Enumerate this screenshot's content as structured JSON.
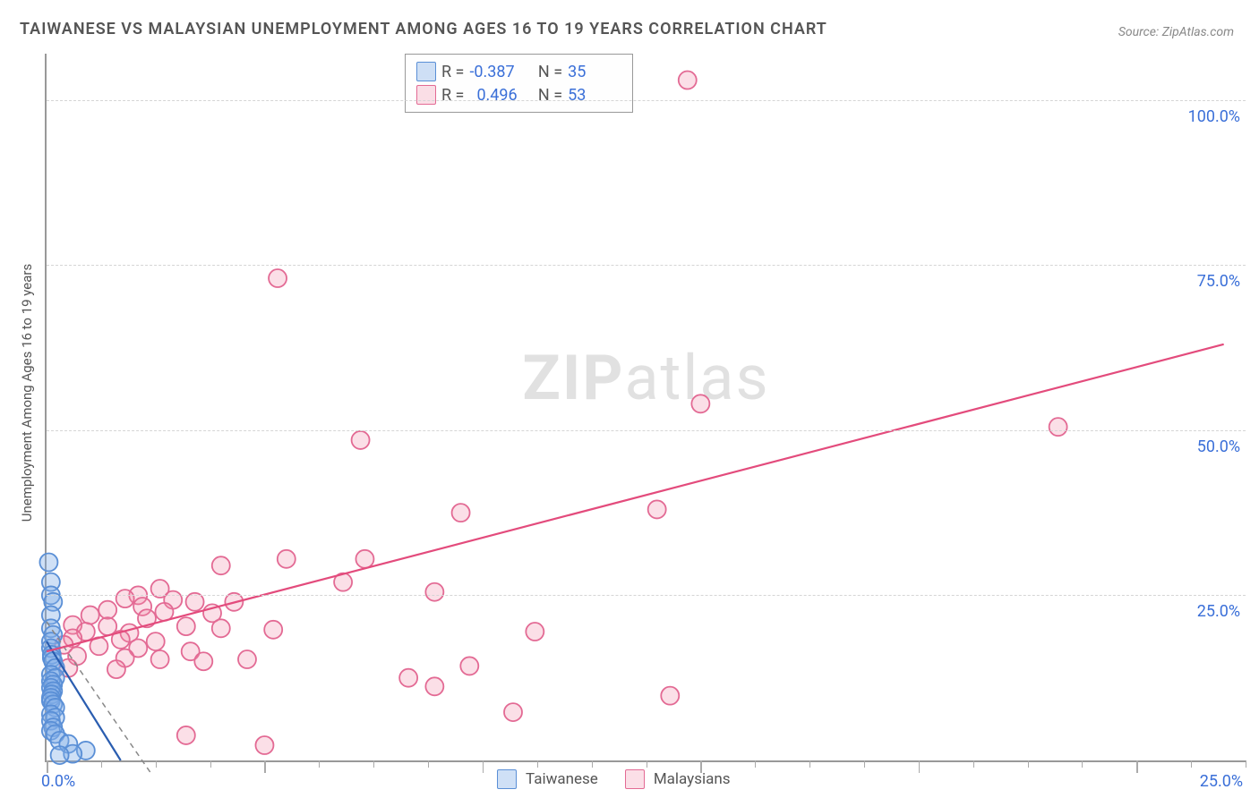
{
  "title": "TAIWANESE VS MALAYSIAN UNEMPLOYMENT AMONG AGES 16 TO 19 YEARS CORRELATION CHART",
  "source_label": "Source:",
  "source_name": "ZipAtlas.com",
  "ylabel": "Unemployment Among Ages 16 to 19 years",
  "watermark_bold": "ZIP",
  "watermark_light": "atlas",
  "chart": {
    "type": "scatter",
    "xlim": [
      0,
      27.5
    ],
    "ylim": [
      0,
      107
    ],
    "x_tick_step_minor": 1.25,
    "x_tick_major_every": 4,
    "y_gridlines": [
      25,
      50,
      75,
      100
    ],
    "y_labels": [
      {
        "v": 25,
        "t": "25.0%"
      },
      {
        "v": 50,
        "t": "50.0%"
      },
      {
        "v": 75,
        "t": "75.0%"
      },
      {
        "v": 100,
        "t": "100.0%"
      }
    ],
    "x_origin_label": "0.0%",
    "x_max_label": "25.0%",
    "background": "#ffffff",
    "grid_color": "#d5d5d5",
    "axis_color": "#999999",
    "point_radius": 10,
    "point_stroke_width": 1.8,
    "line_width": 2.2
  },
  "series": {
    "taiwanese": {
      "label": "Taiwanese",
      "R": "-0.387",
      "N": "35",
      "fill": "rgba(129,174,231,0.38)",
      "stroke": "#5a8fd6",
      "line_color": "#2a5db0",
      "trend": {
        "x1": 0,
        "y1": 18,
        "x2": 1.7,
        "y2": 0
      },
      "guide": {
        "x1": 0,
        "y1": 21,
        "x2": 2.4,
        "y2": -2,
        "dash": "6,5",
        "color": "#888"
      },
      "points": [
        {
          "x": 0.05,
          "y": 30
        },
        {
          "x": 0.1,
          "y": 27
        },
        {
          "x": 0.1,
          "y": 25
        },
        {
          "x": 0.15,
          "y": 24
        },
        {
          "x": 0.1,
          "y": 22
        },
        {
          "x": 0.1,
          "y": 20
        },
        {
          "x": 0.15,
          "y": 19
        },
        {
          "x": 0.1,
          "y": 18
        },
        {
          "x": 0.1,
          "y": 17
        },
        {
          "x": 0.12,
          "y": 16
        },
        {
          "x": 0.12,
          "y": 15.5
        },
        {
          "x": 0.15,
          "y": 15
        },
        {
          "x": 0.2,
          "y": 14
        },
        {
          "x": 0.1,
          "y": 13
        },
        {
          "x": 0.2,
          "y": 12.5
        },
        {
          "x": 0.1,
          "y": 12
        },
        {
          "x": 0.15,
          "y": 11.5
        },
        {
          "x": 0.1,
          "y": 11
        },
        {
          "x": 0.15,
          "y": 10.5
        },
        {
          "x": 0.12,
          "y": 10
        },
        {
          "x": 0.1,
          "y": 9.5
        },
        {
          "x": 0.1,
          "y": 9
        },
        {
          "x": 0.15,
          "y": 8.5
        },
        {
          "x": 0.2,
          "y": 8
        },
        {
          "x": 0.1,
          "y": 7
        },
        {
          "x": 0.2,
          "y": 6.5
        },
        {
          "x": 0.1,
          "y": 6
        },
        {
          "x": 0.15,
          "y": 5
        },
        {
          "x": 0.1,
          "y": 4.5
        },
        {
          "x": 0.2,
          "y": 4
        },
        {
          "x": 0.3,
          "y": 3
        },
        {
          "x": 0.5,
          "y": 2.5
        },
        {
          "x": 0.9,
          "y": 1.5
        },
        {
          "x": 0.6,
          "y": 1
        },
        {
          "x": 0.3,
          "y": 0.8
        }
      ]
    },
    "malaysians": {
      "label": "Malaysians",
      "R": "0.496",
      "N": "53",
      "fill": "rgba(240,140,170,0.28)",
      "stroke": "#e36a94",
      "line_color": "#e34b7c",
      "trend": {
        "x1": 0,
        "y1": 16.5,
        "x2": 27,
        "y2": 63
      },
      "points": [
        {
          "x": 14.7,
          "y": 103
        },
        {
          "x": 5.3,
          "y": 73
        },
        {
          "x": 15,
          "y": 54
        },
        {
          "x": 23.2,
          "y": 50.5
        },
        {
          "x": 7.2,
          "y": 48.5
        },
        {
          "x": 14,
          "y": 38
        },
        {
          "x": 9.5,
          "y": 37.5
        },
        {
          "x": 5.5,
          "y": 30.5
        },
        {
          "x": 7.3,
          "y": 30.5
        },
        {
          "x": 4,
          "y": 29.5
        },
        {
          "x": 6.8,
          "y": 27
        },
        {
          "x": 2.6,
          "y": 26
        },
        {
          "x": 8.9,
          "y": 25.5
        },
        {
          "x": 2.1,
          "y": 25
        },
        {
          "x": 1.8,
          "y": 24.5
        },
        {
          "x": 2.9,
          "y": 24.3
        },
        {
          "x": 3.4,
          "y": 24
        },
        {
          "x": 4.3,
          "y": 24
        },
        {
          "x": 2.2,
          "y": 23.3
        },
        {
          "x": 1.4,
          "y": 22.8
        },
        {
          "x": 2.7,
          "y": 22.5
        },
        {
          "x": 3.8,
          "y": 22.3
        },
        {
          "x": 1.0,
          "y": 22
        },
        {
          "x": 2.3,
          "y": 21.5
        },
        {
          "x": 0.6,
          "y": 20.5
        },
        {
          "x": 1.4,
          "y": 20.3
        },
        {
          "x": 3.2,
          "y": 20.3
        },
        {
          "x": 4.0,
          "y": 20
        },
        {
          "x": 5.2,
          "y": 19.8
        },
        {
          "x": 0.9,
          "y": 19.5
        },
        {
          "x": 1.9,
          "y": 19.3
        },
        {
          "x": 11.2,
          "y": 19.5
        },
        {
          "x": 0.6,
          "y": 18.5
        },
        {
          "x": 1.7,
          "y": 18.3
        },
        {
          "x": 2.5,
          "y": 18
        },
        {
          "x": 0.4,
          "y": 17.5
        },
        {
          "x": 1.2,
          "y": 17.3
        },
        {
          "x": 2.1,
          "y": 17
        },
        {
          "x": 3.3,
          "y": 16.5
        },
        {
          "x": 0.7,
          "y": 15.8
        },
        {
          "x": 1.8,
          "y": 15.5
        },
        {
          "x": 2.6,
          "y": 15.3
        },
        {
          "x": 3.6,
          "y": 15
        },
        {
          "x": 4.6,
          "y": 15.3
        },
        {
          "x": 0.5,
          "y": 14
        },
        {
          "x": 1.6,
          "y": 13.8
        },
        {
          "x": 8.3,
          "y": 12.5
        },
        {
          "x": 9.7,
          "y": 14.3
        },
        {
          "x": 8.9,
          "y": 11.2
        },
        {
          "x": 14.3,
          "y": 9.8
        },
        {
          "x": 10.7,
          "y": 7.3
        },
        {
          "x": 3.2,
          "y": 3.8
        },
        {
          "x": 5.0,
          "y": 2.3
        }
      ]
    }
  },
  "legend_top_labels": {
    "R": "R =",
    "N": "N ="
  }
}
